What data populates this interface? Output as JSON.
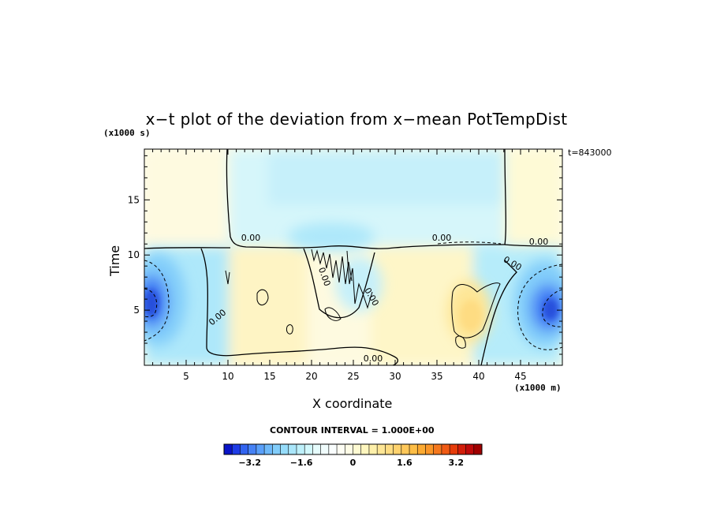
{
  "chart_data": {
    "type": "heatmap",
    "title": "x−t plot of the deviation from x−mean PotTempDist",
    "xlabel": "X coordinate",
    "ylabel": "Time",
    "x_unit": "(x1000 m)",
    "y_unit": "(x1000 s)",
    "timestamp": "t=843000",
    "xlim": [
      0,
      50
    ],
    "ylim": [
      0,
      19.6
    ],
    "x_ticks": [
      5,
      10,
      15,
      20,
      25,
      30,
      35,
      40,
      45
    ],
    "x_tick_labels": [
      "5",
      "10",
      "15",
      "20",
      "25",
      "30",
      "35",
      "40",
      "45"
    ],
    "y_ticks": [
      5,
      10,
      15
    ],
    "y_tick_labels": [
      "5",
      "10",
      "15"
    ],
    "contour_interval": "CONTOUR INTERVAL = 1.000E+00",
    "contour_labels": [
      "0.00",
      "0.00",
      "0.00",
      "0.00",
      "0.00",
      "0.00",
      "0.00",
      "0.00"
    ],
    "colorbar": {
      "min": -4.0,
      "max": 4.0,
      "ticks": [
        -3.2,
        -1.6,
        0,
        1.6,
        3.2
      ],
      "tick_labels": [
        "−3.2",
        "−1.6",
        "0",
        "1.6",
        "3.2"
      ],
      "colors": [
        "#0a14c8",
        "#1e3ce6",
        "#3264f0",
        "#4682f5",
        "#5aa0fa",
        "#6eb9fa",
        "#82cdfa",
        "#96dcfa",
        "#aae6fa",
        "#bef0fa",
        "#d2f8fc",
        "#e6fcfc",
        "#f0fcfc",
        "#fafefe",
        "#fefef4",
        "#fefce6",
        "#fefad2",
        "#fef6be",
        "#fef0aa",
        "#fee696",
        "#fedc82",
        "#fed26e",
        "#fec85a",
        "#febe46",
        "#fcaa32",
        "#fa9628",
        "#f5781e",
        "#f05a14",
        "#e63c0a",
        "#d21e0a",
        "#be0a0a",
        "#a00000"
      ]
    }
  }
}
